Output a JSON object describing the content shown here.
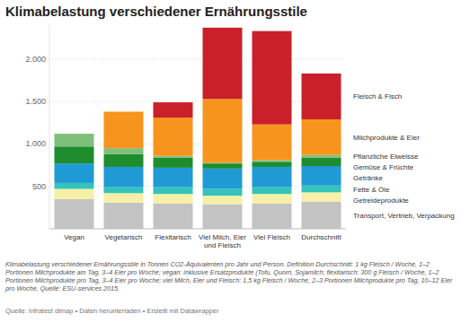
{
  "chart_data": {
    "type": "bar",
    "stacked": true,
    "grid": true,
    "title": "Klimabelastung verschiedener Ernährungsstile",
    "caption": "Klimabelastung verschiedener Ernährungsstile in Tonnen CO2-Äquivalenten pro Jahr und Person. Definition Durchschnitt: 1 kg Fleisch / Woche, 1–2 Portionen Milchprodukte am Tag, 3–4 Eier pro Woche; vegan: inklusive Ersatzprodukte (Tofu, Quorn, Sojamilch; flexitarisch: 300 g Fleisch / Woche, 1–2 Portionen Milchprodukte pro Tag, 3–4 Eier pro Woche; viel Milch, Eier und Fleisch: 1,5 kg Fleisch / Woche, 2–3 Portionen Milchprodukte pro Tag, 10–12 Eier pro Woche. Quelle: ESU-services 2015.",
    "source": "Quelle: Infratest dimap • Daten herunterladen • Erstellt mit Datawrapper",
    "categories": [
      "Vegan",
      "Vegetarisch",
      "Flexitarisch",
      "Viel Milch, Eier und Fleisch",
      "Viel Fleisch",
      "Durchschnitt"
    ],
    "ylim": [
      0,
      2400
    ],
    "yticks": [
      500,
      {
        "value": 1000,
        "label": "1.000"
      },
      {
        "value": 1500,
        "label": "1.500"
      },
      {
        "value": 2000,
        "label": "2.000"
      }
    ],
    "series": [
      {
        "name": "Transport, Vertrieb, Verpackung",
        "color": "#c3c3c3",
        "values": [
          350,
          310,
          300,
          290,
          300,
          320
        ]
      },
      {
        "name": "Getreideprodukte",
        "color": "#f6f0a6",
        "values": [
          120,
          110,
          110,
          100,
          110,
          110
        ]
      },
      {
        "name": "Fette & Öle",
        "color": "#35c3bd",
        "values": [
          70,
          70,
          80,
          80,
          80,
          80
        ]
      },
      {
        "name": "Getränke",
        "color": "#1f9ad4",
        "values": [
          230,
          240,
          230,
          240,
          240,
          230
        ]
      },
      {
        "name": "Gemüse & Früchte",
        "color": "#1f8c2e",
        "values": [
          200,
          150,
          120,
          60,
          60,
          100
        ]
      },
      {
        "name": "Pflanzliche Eiweisse",
        "color": "#7fbf7c",
        "values": [
          150,
          70,
          20,
          10,
          20,
          30
        ]
      },
      {
        "name": "Milchprodukte & Eier",
        "color": "#f7941d",
        "values": [
          0,
          430,
          450,
          750,
          420,
          420
        ]
      },
      {
        "name": "Fleisch & Fisch",
        "color": "#c9202a",
        "values": [
          0,
          0,
          180,
          840,
          1100,
          540
        ]
      }
    ]
  }
}
